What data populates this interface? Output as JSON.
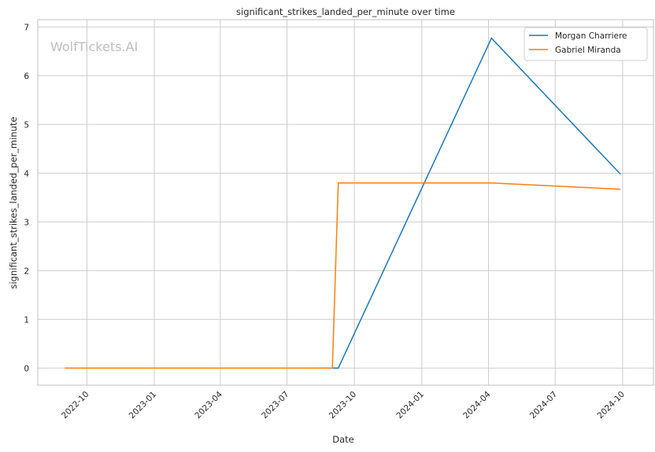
{
  "watermark": "WolfTickets.AI",
  "chart_data": {
    "type": "line",
    "title": "significant_strikes_landed_per_minute over time",
    "xlabel": "Date",
    "ylabel": "significant_strikes_landed_per_minute",
    "xlim": [
      "2022-07-26",
      "2024-11-12"
    ],
    "ylim": [
      -0.35,
      7.15
    ],
    "xticks": [
      "2022-10",
      "2023-01",
      "2023-04",
      "2023-07",
      "2023-10",
      "2024-01",
      "2024-04",
      "2024-07",
      "2024-10"
    ],
    "yticks": [
      0,
      1,
      2,
      3,
      4,
      5,
      6,
      7
    ],
    "grid": true,
    "legend_position": "top-right",
    "series": [
      {
        "name": "Morgan Charriere",
        "color": "#1f77b4",
        "x": [
          "2023-09-01",
          "2023-09-09",
          "2024-04-05",
          "2024-09-28"
        ],
        "y": [
          0,
          0,
          6.77,
          3.98
        ]
      },
      {
        "name": "Gabriel Miranda",
        "color": "#ff7f0e",
        "x": [
          "2022-09-01",
          "2023-09-01",
          "2023-09-09",
          "2024-04-05",
          "2024-09-28"
        ],
        "y": [
          0,
          0,
          3.8,
          3.8,
          3.67
        ]
      }
    ]
  }
}
